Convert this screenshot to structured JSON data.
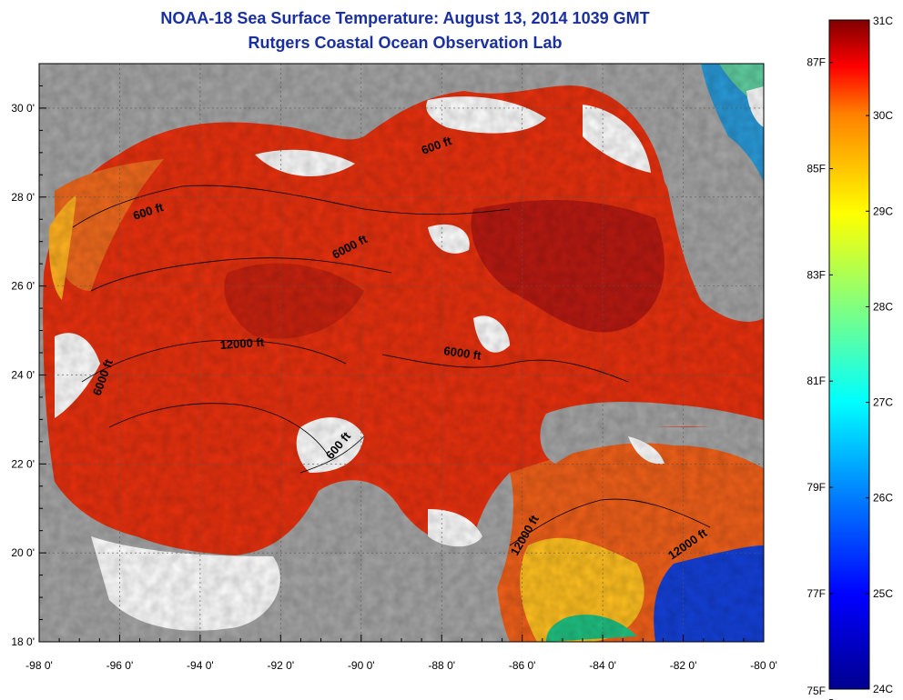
{
  "header": {
    "title": "NOAA-18 Sea Surface Temperature:  August 13, 2014 1039 GMT",
    "subtitle": "Rutgers Coastal Ocean Observation Lab"
  },
  "axes": {
    "y_ticks": [
      "30 0'",
      "28 0'",
      "26 0'",
      "24 0'",
      "22 0'",
      "20 0'",
      "18 0'"
    ],
    "x_ticks": [
      "-98 0'",
      "-96 0'",
      "-94 0'",
      "-92 0'",
      "-90 0'",
      "-88 0'",
      "-86 0'",
      "-84 0'",
      "-82 0'",
      "-80 0'"
    ],
    "lat_range": [
      18,
      31
    ],
    "lon_range": [
      -98,
      -80
    ]
  },
  "contour_labels": [
    "600 ft",
    "600 ft",
    "6000 ft",
    "12000 ft",
    "6000 ft",
    "6000 ft",
    "600 ft",
    "12000 ft",
    "12000 ft"
  ],
  "colorbar": {
    "celsius": [
      "31C",
      "30C",
      "29C",
      "28C",
      "27C",
      "26C",
      "25C",
      "24C"
    ],
    "fahrenheit": [
      "87F",
      "85F",
      "83F",
      "81F",
      "79F",
      "77F",
      "75F"
    ],
    "min_c": 24,
    "max_c": 31
  },
  "colors": {
    "title": "#1a2fa0",
    "land": "#a6a6a6",
    "cloud": "#ffffff"
  }
}
